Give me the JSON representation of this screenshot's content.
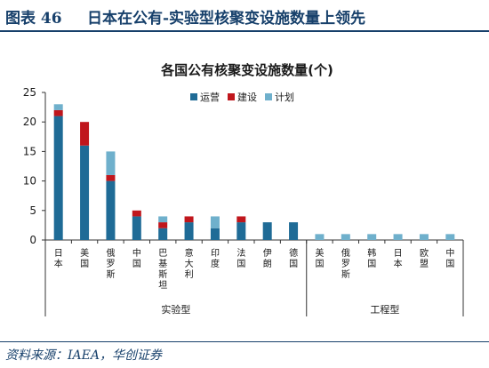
{
  "header": {
    "figure_number": "图表 46",
    "figure_title": "日本在公有-实验型核聚变设施数量上领先"
  },
  "source": "资料来源：IAEA，华创证券",
  "colors": {
    "operating": "#1f6b96",
    "construction": "#c0161c",
    "planned": "#6fb0cc",
    "header": "#17406b"
  },
  "chart_data": {
    "type": "bar",
    "stacked": true,
    "title": "各国公有核聚变设施数量(个)",
    "ylim": [
      0,
      25
    ],
    "yticks": [
      0,
      5,
      10,
      15,
      20,
      25
    ],
    "legend_position": "top-right",
    "categories": [
      "日本",
      "美国",
      "俄罗斯",
      "中国",
      "巴基斯坦",
      "意大利",
      "印度",
      "法国",
      "伊朗",
      "德国",
      "美国",
      "俄罗斯",
      "韩国",
      "日本",
      "欧盟",
      "中国"
    ],
    "groups": [
      {
        "label": "实验型",
        "count": 10
      },
      {
        "label": "工程型",
        "count": 6
      }
    ],
    "series": [
      {
        "name": "运营",
        "values": [
          21,
          16,
          10,
          4,
          2,
          3,
          2,
          3,
          3,
          3,
          0,
          0,
          0,
          0,
          0,
          0
        ]
      },
      {
        "name": "建设",
        "values": [
          1,
          4,
          1,
          1,
          1,
          1,
          0,
          1,
          0,
          0,
          0,
          0,
          0,
          0,
          0,
          0
        ]
      },
      {
        "name": "计划",
        "values": [
          1,
          0,
          4,
          0,
          1,
          0,
          2,
          0,
          0,
          0,
          1,
          1,
          1,
          1,
          1,
          1
        ]
      }
    ]
  }
}
